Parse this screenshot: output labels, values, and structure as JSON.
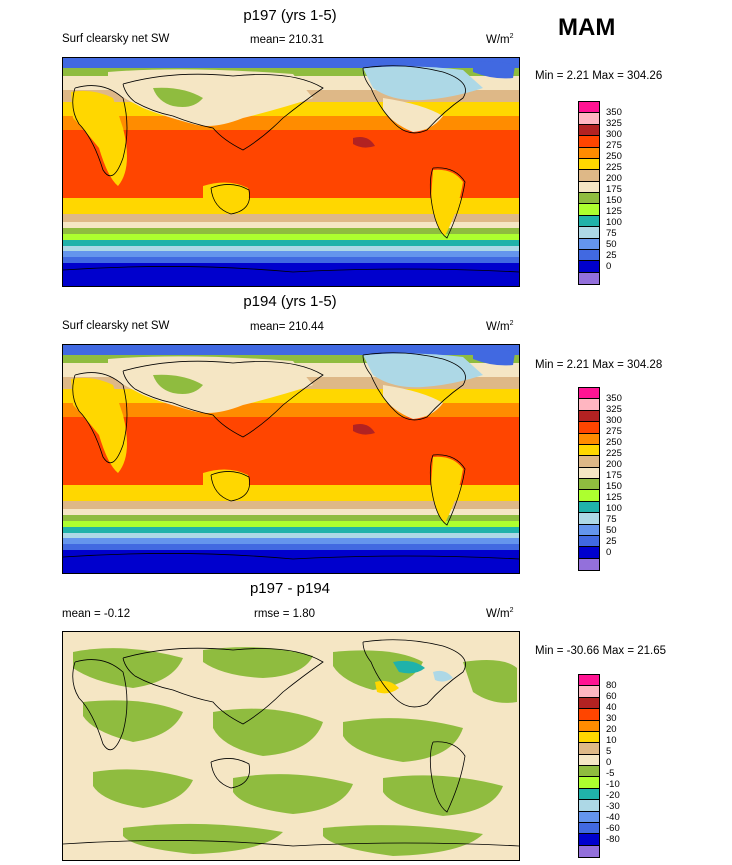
{
  "season": "MAM",
  "units_text": "W/m",
  "units_sup": "2",
  "panels": [
    {
      "title": "p197 (yrs 1-5)",
      "variable": "Surf clearsky net SW",
      "stat": "mean= 210.31",
      "minmax": "Min =   2.21 Max = 304.26",
      "legend_labels": [
        "350",
        "325",
        "300",
        "275",
        "250",
        "225",
        "200",
        "175",
        "150",
        "125",
        "100",
        "75",
        "50",
        "25",
        "0"
      ]
    },
    {
      "title": "p194 (yrs 1-5)",
      "variable": "Surf clearsky net SW",
      "stat": "mean= 210.44",
      "minmax": "Min =   2.21 Max = 304.28",
      "legend_labels": [
        "350",
        "325",
        "300",
        "275",
        "250",
        "225",
        "200",
        "175",
        "150",
        "125",
        "100",
        "75",
        "50",
        "25",
        "0"
      ]
    },
    {
      "title": "p197 - p194",
      "variable": "mean =  -0.12",
      "stat": "rmse =   1.80",
      "minmax": "Min = -30.66 Max =  21.65",
      "legend_labels": [
        "80",
        "60",
        "40",
        "30",
        "20",
        "10",
        "5",
        "0",
        "-5",
        "-10",
        "-20",
        "-30",
        "-40",
        "-60",
        "-80"
      ]
    }
  ],
  "colors": {
    "field_scale": [
      "#ff1493",
      "#ffb6c1",
      "#b22222",
      "#ff4500",
      "#ff8c00",
      "#ffd700",
      "#deb887",
      "#f5e6c4",
      "#8fbc3f",
      "#adff2f",
      "#20b2aa",
      "#add8e6",
      "#6495ed",
      "#4169e1",
      "#0000cd",
      "#9370db"
    ],
    "diff_scale": [
      "#ff1493",
      "#ffb6c1",
      "#b22222",
      "#ff4500",
      "#ff8c00",
      "#ffd700",
      "#deb887",
      "#f5e6c4",
      "#8fbc3f",
      "#adff2f",
      "#20b2aa",
      "#add8e6",
      "#6495ed",
      "#4169e1",
      "#0000cd",
      "#9370db"
    ]
  }
}
